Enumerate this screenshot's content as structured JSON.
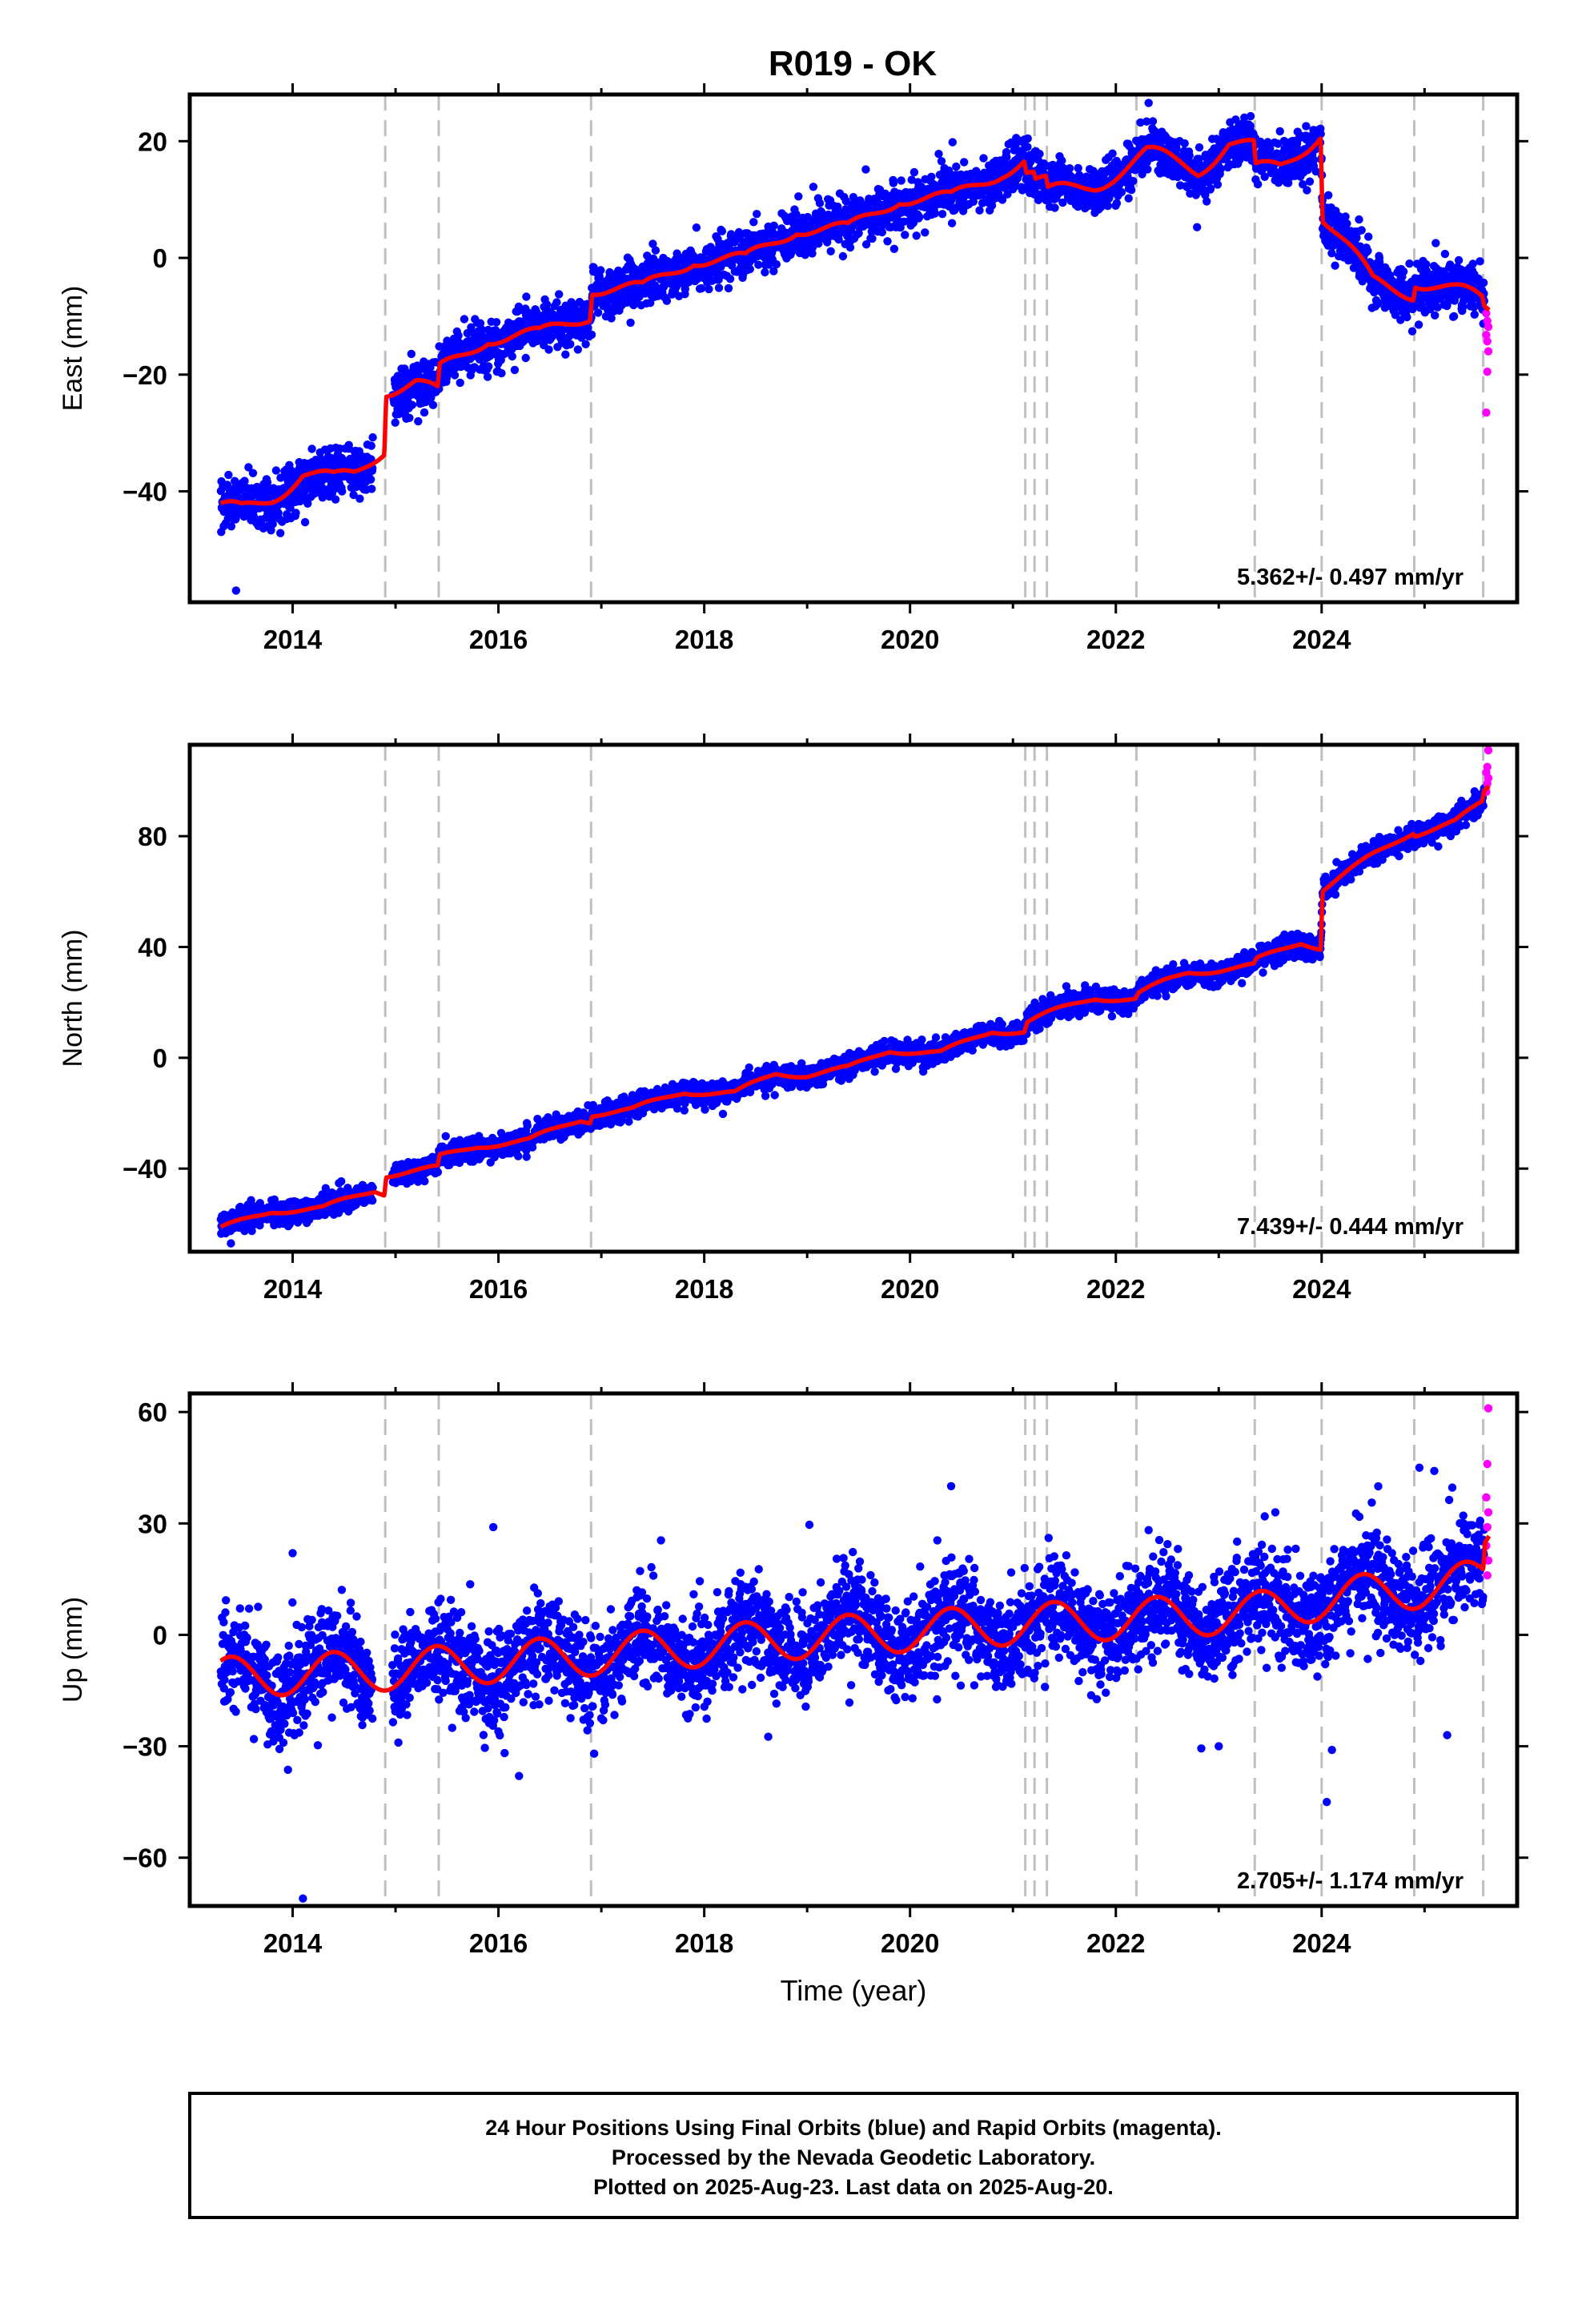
{
  "title": "R019 - OK",
  "footer": {
    "line1": "24 Hour Positions Using Final Orbits (blue) and Rapid Orbits (magenta).",
    "line2": "Processed by the Nevada Geodetic Laboratory.",
    "line3": "Plotted on 2025-Aug-23. Last data on 2025-Aug-20."
  },
  "colors": {
    "final": "#0000ff",
    "rapid": "#ff00ff",
    "model": "#ff0000",
    "event_lines": "#c0c0c0"
  },
  "chart_data": [
    {
      "type": "scatter",
      "panel": "east",
      "ylabel": "East (mm)",
      "xlabel": "",
      "xlim": [
        2013.0,
        2025.9
      ],
      "ylim": [
        -59,
        28
      ],
      "x_ticks": [
        "2014",
        "2016",
        "2018",
        "2020",
        "2022",
        "2024"
      ],
      "y_ticks": [
        "20",
        "0",
        "-20",
        "-40"
      ],
      "rate_text": "5.362+/- 0.497 mm/yr",
      "event_lines": [
        2014.9,
        2015.42,
        2016.9,
        2021.12,
        2021.21,
        2021.33,
        2022.2,
        2023.35,
        2024.0,
        2024.9,
        2025.57
      ],
      "trend_knots": [
        [
          2013.3,
          -43.5
        ],
        [
          2013.5,
          -43.5
        ],
        [
          2013.8,
          -40.5
        ],
        [
          2014.1,
          -36.8
        ],
        [
          2014.4,
          -38.5
        ],
        [
          2014.6,
          -37.2
        ],
        [
          2014.89,
          -32.0
        ],
        [
          2014.91,
          -22.0
        ],
        [
          2015.2,
          -21.5
        ],
        [
          2015.41,
          -23.8
        ],
        [
          2015.43,
          -19.8
        ],
        [
          2015.9,
          -13.0
        ],
        [
          2016.4,
          -13.8
        ],
        [
          2016.89,
          -9.0
        ],
        [
          2016.91,
          -4.5
        ],
        [
          2017.4,
          -6.0
        ],
        [
          2017.9,
          0.5
        ],
        [
          2018.4,
          -1.0
        ],
        [
          2018.9,
          5.8
        ],
        [
          2019.4,
          4.2
        ],
        [
          2019.9,
          11.0
        ],
        [
          2020.4,
          9.5
        ],
        [
          2020.9,
          15.5
        ],
        [
          2021.11,
          17.0
        ],
        [
          2021.13,
          14.8
        ],
        [
          2021.2,
          14.2
        ],
        [
          2021.22,
          12.8
        ],
        [
          2021.32,
          12.5
        ],
        [
          2021.34,
          10.5
        ],
        [
          2021.8,
          13.0
        ],
        [
          2022.3,
          17.5
        ],
        [
          2022.8,
          15.5
        ],
        [
          2023.1,
          20.0
        ],
        [
          2023.34,
          18.5
        ],
        [
          2023.36,
          14.5
        ],
        [
          2023.6,
          15.5
        ],
        [
          2023.99,
          22.0
        ],
        [
          2024.01,
          7.5
        ],
        [
          2024.5,
          -4.5
        ],
        [
          2024.89,
          -5.5
        ],
        [
          2024.91,
          -3.3
        ],
        [
          2025.3,
          -6.0
        ],
        [
          2025.56,
          -7.5
        ],
        [
          2025.58,
          -9.0
        ],
        [
          2025.63,
          -9.2
        ]
      ],
      "model_params": {
        "amp": 1.8,
        "noise": 2.0,
        "outlier_rate": 0.01,
        "outlier_amp": 8
      },
      "data_range": [
        2013.3,
        2025.58
      ],
      "rapid_points": [
        [
          2025.6,
          -9.5
        ],
        [
          2025.61,
          -10.8
        ],
        [
          2025.62,
          -11.8
        ],
        [
          2025.6,
          -13.2
        ],
        [
          2025.61,
          -14.3
        ],
        [
          2025.62,
          -16.0
        ],
        [
          2025.61,
          -19.5
        ],
        [
          2025.6,
          -26.5
        ]
      ],
      "stray_points": [
        [
          2013.45,
          -57
        ],
        [
          2015.22,
          -28
        ]
      ]
    },
    {
      "type": "scatter",
      "panel": "north",
      "ylabel": "North (mm)",
      "xlabel": "",
      "xlim": [
        2013.0,
        2025.9
      ],
      "ylim": [
        -70,
        113
      ],
      "x_ticks": [
        "2014",
        "2016",
        "2018",
        "2020",
        "2022",
        "2024"
      ],
      "y_ticks": [
        "80",
        "40",
        "0",
        "-40"
      ],
      "rate_text": "7.439+/- 0.444 mm/yr",
      "event_lines": [
        2014.9,
        2015.42,
        2016.9,
        2021.12,
        2021.21,
        2021.33,
        2022.2,
        2023.35,
        2024.0,
        2024.9,
        2025.57
      ],
      "trend_knots": [
        [
          2013.3,
          -62.0
        ],
        [
          2013.8,
          -55.0
        ],
        [
          2014.3,
          -54.5
        ],
        [
          2014.8,
          -47.5
        ],
        [
          2014.89,
          -48.5
        ],
        [
          2014.91,
          -42.0
        ],
        [
          2015.41,
          -40.0
        ],
        [
          2015.43,
          -36.0
        ],
        [
          2015.8,
          -31.5
        ],
        [
          2016.3,
          -30.0
        ],
        [
          2016.8,
          -22.0
        ],
        [
          2016.89,
          -22.5
        ],
        [
          2016.91,
          -20.0
        ],
        [
          2017.3,
          -19.0
        ],
        [
          2017.8,
          -12.0
        ],
        [
          2018.3,
          -13.0
        ],
        [
          2018.7,
          -5.5
        ],
        [
          2019.0,
          -6.0
        ],
        [
          2019.4,
          -4.0
        ],
        [
          2019.8,
          3.0
        ],
        [
          2020.3,
          1.5
        ],
        [
          2020.8,
          10.0
        ],
        [
          2021.11,
          9.5
        ],
        [
          2021.14,
          13.0
        ],
        [
          2021.8,
          22.0
        ],
        [
          2022.19,
          21.0
        ],
        [
          2022.22,
          23.0
        ],
        [
          2022.7,
          31.0
        ],
        [
          2023.34,
          33.0
        ],
        [
          2023.37,
          35.0
        ],
        [
          2023.8,
          42.0
        ],
        [
          2023.99,
          40.0
        ],
        [
          2024.01,
          61.0
        ],
        [
          2024.5,
          73.0
        ],
        [
          2024.89,
          82.0
        ],
        [
          2024.91,
          81.0
        ],
        [
          2025.3,
          85.0
        ],
        [
          2025.56,
          92.0
        ],
        [
          2025.58,
          96.0
        ],
        [
          2025.63,
          98.0
        ]
      ],
      "model_params": {
        "amp": 1.2,
        "noise": 2.0,
        "outlier_rate": 0.01,
        "outlier_amp": 6
      },
      "data_range": [
        2013.3,
        2025.58
      ],
      "rapid_points": [
        [
          2025.6,
          96
        ],
        [
          2025.61,
          99
        ],
        [
          2025.62,
          101
        ],
        [
          2025.6,
          103
        ],
        [
          2025.61,
          105
        ],
        [
          2025.62,
          111
        ]
      ],
      "stray_points": [
        [
          2013.4,
          -67
        ]
      ]
    },
    {
      "type": "scatter",
      "panel": "up",
      "ylabel": "Up (mm)",
      "xlabel": "Time (year)",
      "xlim": [
        2013.0,
        2025.9
      ],
      "ylim": [
        -73,
        65
      ],
      "x_ticks": [
        "2014",
        "2016",
        "2018",
        "2020",
        "2022",
        "2024"
      ],
      "y_ticks": [
        "60",
        "30",
        "0",
        "-30",
        "-60"
      ],
      "rate_text": "2.705+/- 1.174 mm/yr",
      "event_lines": [
        2014.9,
        2015.42,
        2016.9,
        2021.12,
        2021.21,
        2021.33,
        2022.2,
        2023.35,
        2024.0,
        2024.9,
        2025.57
      ],
      "trend_knots": [
        [
          2013.3,
          -11.5
        ],
        [
          2014.9,
          -9.5
        ],
        [
          2016.9,
          -5.5
        ],
        [
          2018.9,
          -1.0
        ],
        [
          2021.12,
          3.0
        ],
        [
          2023.35,
          6.0
        ],
        [
          2024.0,
          9.5
        ],
        [
          2025.5,
          14.5
        ],
        [
          2025.57,
          15.0
        ],
        [
          2025.59,
          23.0
        ],
        [
          2025.63,
          26.0
        ]
      ],
      "model_params": {
        "amp": 5.5,
        "noise": 6.5,
        "outlier_rate": 0.02,
        "outlier_amp": 22
      },
      "data_range": [
        2013.3,
        2025.58
      ],
      "rapid_points": [
        [
          2025.61,
          16
        ],
        [
          2025.62,
          20
        ],
        [
          2025.6,
          24
        ],
        [
          2025.61,
          29
        ],
        [
          2025.62,
          33
        ],
        [
          2025.6,
          37
        ],
        [
          2025.61,
          46
        ],
        [
          2025.62,
          61
        ]
      ],
      "stray_points": [
        [
          2014.1,
          -71
        ],
        [
          2014.0,
          22
        ],
        [
          2015.95,
          29
        ],
        [
          2016.2,
          -38
        ],
        [
          2016.93,
          -32
        ],
        [
          2023.0,
          -30
        ],
        [
          2024.05,
          -45
        ],
        [
          2024.1,
          -31
        ],
        [
          2025.22,
          -27
        ],
        [
          2024.95,
          45
        ],
        [
          2023.55,
          33
        ],
        [
          2024.55,
          40
        ]
      ]
    }
  ]
}
